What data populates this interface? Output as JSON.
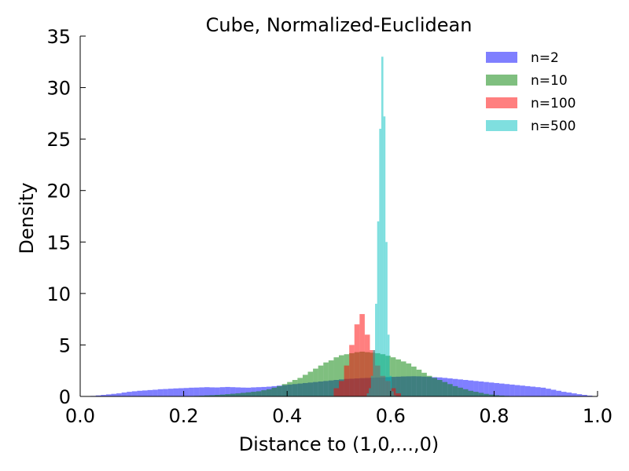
{
  "chart_data": {
    "type": "bar",
    "subtype": "histogram-overlay",
    "title": "Cube, Normalized-Euclidean",
    "xlabel": "Distance to (1,0,...,0)",
    "ylabel": "Density",
    "xlim": [
      0.0,
      1.0
    ],
    "ylim": [
      0,
      35
    ],
    "xticks": [
      "0.0",
      "0.2",
      "0.4",
      "0.6",
      "0.8",
      "1.0"
    ],
    "yticks": [
      "0",
      "5",
      "10",
      "15",
      "20",
      "25",
      "30",
      "35"
    ],
    "grid": false,
    "legend": {
      "location": "top-right",
      "entries": [
        "n=2",
        "n=10",
        "n=100",
        "n=500"
      ]
    },
    "series": [
      {
        "name": "n=2",
        "color": "#0000ff",
        "bin_start": 0.0,
        "bin_width": 0.01,
        "values": [
          0.0,
          0.0,
          0.05,
          0.1,
          0.15,
          0.2,
          0.25,
          0.3,
          0.38,
          0.45,
          0.5,
          0.55,
          0.58,
          0.62,
          0.65,
          0.7,
          0.72,
          0.75,
          0.78,
          0.8,
          0.82,
          0.85,
          0.86,
          0.88,
          0.9,
          0.88,
          0.87,
          0.9,
          0.92,
          0.9,
          0.88,
          0.86,
          0.85,
          0.88,
          0.9,
          0.92,
          0.95,
          1.0,
          1.05,
          1.1,
          1.15,
          1.2,
          1.25,
          1.3,
          1.35,
          1.4,
          1.45,
          1.5,
          1.55,
          1.6,
          1.65,
          1.7,
          1.72,
          1.75,
          1.78,
          1.8,
          1.82,
          1.84,
          1.86,
          1.88,
          1.9,
          1.92,
          1.94,
          1.95,
          1.96,
          1.95,
          1.93,
          1.9,
          1.87,
          1.85,
          1.8,
          1.75,
          1.7,
          1.65,
          1.6,
          1.55,
          1.5,
          1.45,
          1.4,
          1.35,
          1.3,
          1.25,
          1.2,
          1.15,
          1.1,
          1.05,
          1.0,
          0.95,
          0.9,
          0.85,
          0.75,
          0.65,
          0.55,
          0.45,
          0.38,
          0.3,
          0.22,
          0.15,
          0.08,
          0.02
        ]
      },
      {
        "name": "n=10",
        "color": "#008000",
        "bin_start": 0.0,
        "bin_width": 0.01,
        "values": [
          0,
          0,
          0,
          0,
          0,
          0,
          0,
          0,
          0,
          0,
          0,
          0,
          0,
          0,
          0,
          0,
          0,
          0,
          0,
          0,
          0.02,
          0.03,
          0.05,
          0.07,
          0.1,
          0.12,
          0.15,
          0.18,
          0.22,
          0.26,
          0.3,
          0.35,
          0.4,
          0.45,
          0.5,
          0.6,
          0.7,
          0.85,
          1.0,
          1.2,
          1.4,
          1.6,
          1.8,
          2.1,
          2.4,
          2.7,
          3.0,
          3.3,
          3.5,
          3.8,
          4.0,
          4.1,
          4.2,
          4.3,
          4.35,
          4.3,
          4.25,
          4.2,
          4.1,
          3.95,
          3.8,
          3.6,
          3.4,
          3.2,
          2.9,
          2.6,
          2.3,
          2.0,
          1.8,
          1.6,
          1.4,
          1.2,
          1.0,
          0.85,
          0.7,
          0.55,
          0.45,
          0.35,
          0.25,
          0.18,
          0.12,
          0.08,
          0.05,
          0.03,
          0.02,
          0,
          0,
          0,
          0,
          0,
          0,
          0,
          0,
          0,
          0,
          0,
          0,
          0,
          0,
          0
        ]
      },
      {
        "name": "n=100",
        "color": "#ff0000",
        "bin_start": 0.0,
        "bin_width": 0.01,
        "values": [
          0,
          0,
          0,
          0,
          0,
          0,
          0,
          0,
          0,
          0,
          0,
          0,
          0,
          0,
          0,
          0,
          0,
          0,
          0,
          0,
          0,
          0,
          0,
          0,
          0,
          0,
          0,
          0,
          0,
          0,
          0,
          0,
          0,
          0,
          0,
          0,
          0,
          0,
          0,
          0,
          0,
          0,
          0,
          0,
          0,
          0,
          0,
          0,
          0,
          0.8,
          1.5,
          3.0,
          5.0,
          7.0,
          8.0,
          6.0,
          4.5,
          3.0,
          2.0,
          1.5,
          0.8,
          0.3,
          0,
          0,
          0,
          0,
          0,
          0,
          0,
          0,
          0,
          0,
          0,
          0,
          0,
          0,
          0,
          0,
          0,
          0,
          0,
          0,
          0,
          0,
          0,
          0,
          0,
          0,
          0,
          0,
          0,
          0,
          0,
          0,
          0,
          0,
          0,
          0,
          0,
          0
        ]
      },
      {
        "name": "n=500",
        "color": "#00bfbf",
        "bin_start": 0.0,
        "bin_width": 0.01,
        "values": [
          0,
          0,
          0,
          0,
          0,
          0,
          0,
          0,
          0,
          0,
          0,
          0,
          0,
          0,
          0,
          0,
          0,
          0,
          0,
          0,
          0,
          0,
          0,
          0,
          0,
          0,
          0,
          0,
          0,
          0,
          0,
          0,
          0,
          0,
          0,
          0,
          0,
          0,
          0,
          0,
          0,
          0,
          0,
          0,
          0,
          0,
          0,
          0,
          0,
          0,
          0,
          0,
          0,
          0,
          0,
          0,
          0,
          0,
          0,
          0,
          0,
          0,
          0,
          0,
          0,
          0,
          0,
          0,
          0,
          0,
          0,
          0,
          0,
          0,
          0,
          0,
          0,
          0,
          0,
          0,
          0,
          0,
          0,
          0,
          0,
          0,
          0,
          0,
          0,
          0,
          0,
          0,
          0,
          0,
          0,
          0,
          0,
          0,
          0,
          0
        ],
        "fine_bins": {
          "bin_start": 0.554,
          "bin_width": 0.004,
          "values": [
            0.3,
            0.8,
            2.0,
            4.5,
            9.0,
            17.0,
            26.0,
            33.0,
            27.2,
            15.0,
            6.0,
            2.0,
            0.5,
            0.1
          ]
        }
      }
    ]
  }
}
